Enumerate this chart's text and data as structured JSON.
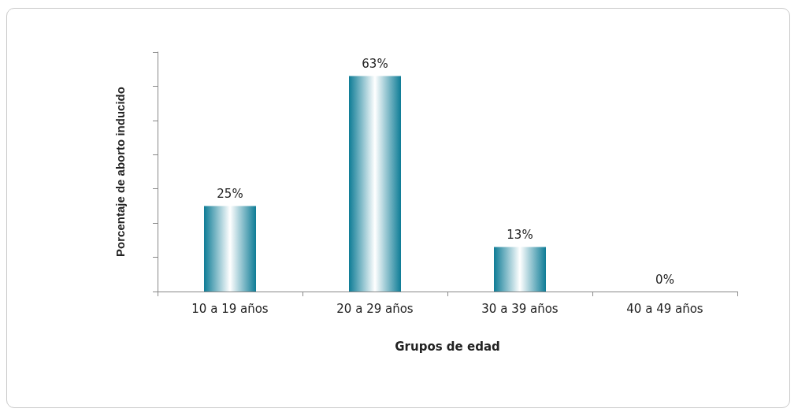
{
  "chart_data": {
    "type": "bar",
    "xlabel": "Grupos de edad",
    "ylabel": "Porcentaje de aborto inducido",
    "categories": [
      "10 a 19 años",
      "20 a 29 años",
      "30 a 39 años",
      "40 a 49 años"
    ],
    "values": [
      25,
      63,
      13,
      0
    ],
    "color": "#0e7c96",
    "value_labels": [
      "25%",
      "63%",
      "13%",
      "0%"
    ],
    "ylim": [
      0,
      70
    ],
    "yticks": [
      {
        "value": 0,
        "label": null
      },
      {
        "value": 10,
        "label": null
      },
      {
        "value": 20,
        "label": null
      },
      {
        "value": 30,
        "label": null
      },
      {
        "value": 40,
        "label": null
      },
      {
        "value": 50,
        "label": null
      },
      {
        "value": 60,
        "label": null
      },
      {
        "value": 70,
        "label": null
      }
    ],
    "tick_labels": "x",
    "grid": false
  }
}
